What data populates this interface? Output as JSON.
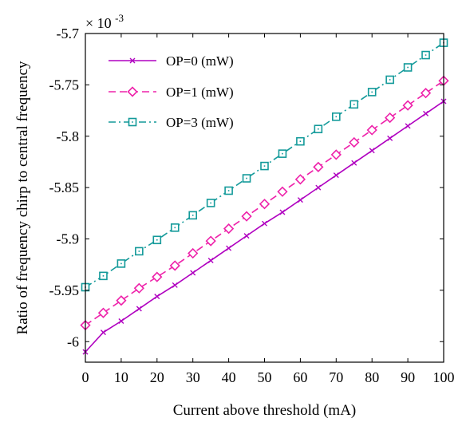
{
  "chart_data": {
    "type": "line",
    "title": "",
    "xlabel": "Current above threshold (mA)",
    "ylabel": "Ratio of frequency chirp to central frequency",
    "scale_exponent_label": "× 10",
    "scale_exponent_power": "-3",
    "xlim": [
      0,
      100
    ],
    "ylim": [
      -6.02,
      -5.7
    ],
    "xticks": [
      0,
      10,
      20,
      30,
      40,
      50,
      60,
      70,
      80,
      90,
      100
    ],
    "xtick_labels": [
      "0",
      "10",
      "20",
      "30",
      "40",
      "50",
      "60",
      "70",
      "80",
      "90",
      "100"
    ],
    "yticks": [
      -6.0,
      -5.95,
      -5.9,
      -5.85,
      -5.8,
      -5.75,
      -5.7
    ],
    "ytick_labels": [
      "-6",
      "-5.95",
      "-5.9",
      "-5.85",
      "-5.8",
      "-5.75",
      "-5.7"
    ],
    "grid": false,
    "legend_position": "top-left",
    "x": [
      0,
      5,
      10,
      15,
      20,
      25,
      30,
      35,
      40,
      45,
      50,
      55,
      60,
      65,
      70,
      75,
      80,
      85,
      90,
      95,
      100
    ],
    "series": [
      {
        "name": "OP=0 (mW)",
        "color": "#b000c0",
        "line_style": "solid",
        "marker": "x",
        "values": [
          -6.01,
          -5.991,
          -5.98,
          -5.968,
          -5.956,
          -5.945,
          -5.933,
          -5.921,
          -5.909,
          -5.897,
          -5.885,
          -5.874,
          -5.862,
          -5.85,
          -5.838,
          -5.826,
          -5.814,
          -5.802,
          -5.79,
          -5.778,
          -5.766
        ]
      },
      {
        "name": "OP=1 (mW)",
        "color": "#ee22aa",
        "line_style": "dashed",
        "marker": "diamond",
        "values": [
          -5.984,
          -5.972,
          -5.96,
          -5.948,
          -5.937,
          -5.926,
          -5.914,
          -5.902,
          -5.89,
          -5.878,
          -5.866,
          -5.854,
          -5.842,
          -5.83,
          -5.818,
          -5.806,
          -5.794,
          -5.782,
          -5.77,
          -5.758,
          -5.746
        ]
      },
      {
        "name": "OP=3 (mW)",
        "color": "#139a9a",
        "line_style": "dashdot",
        "marker": "square",
        "values": [
          -5.947,
          -5.936,
          -5.924,
          -5.912,
          -5.901,
          -5.889,
          -5.877,
          -5.865,
          -5.853,
          -5.841,
          -5.829,
          -5.817,
          -5.805,
          -5.793,
          -5.781,
          -5.769,
          -5.757,
          -5.745,
          -5.733,
          -5.721,
          -5.709
        ]
      }
    ]
  }
}
